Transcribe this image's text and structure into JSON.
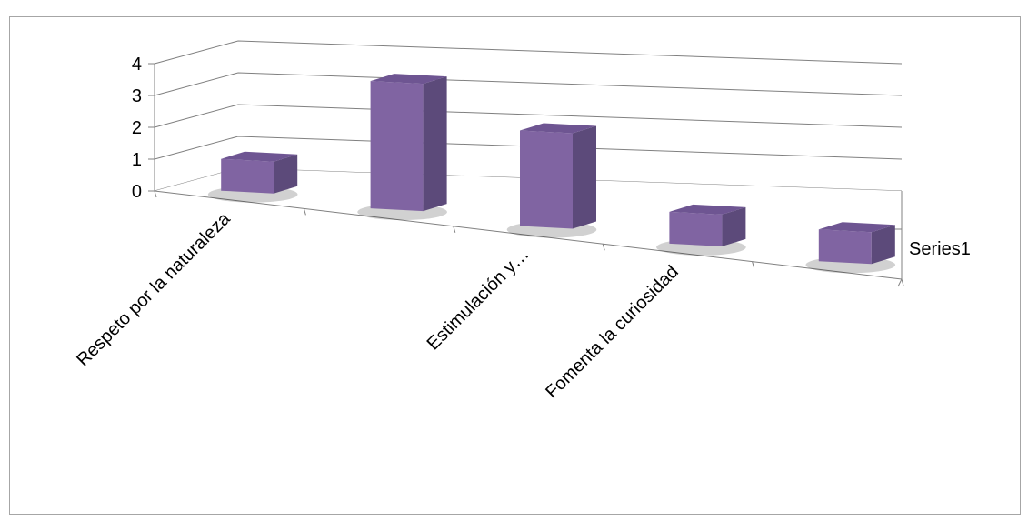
{
  "chart_data": {
    "type": "bar",
    "style": "3d-column",
    "categories": [
      "Respeto por la naturaleza",
      "",
      "Estimulación y…",
      "Fomenta la curiosidad",
      ""
    ],
    "series": [
      {
        "name": "Series1",
        "values": [
          1,
          4,
          3,
          1,
          1
        ]
      }
    ],
    "ylim": [
      0,
      4
    ],
    "yticks": [
      "0",
      "1",
      "2",
      "3",
      "4"
    ],
    "grid": true,
    "legend": "right",
    "bar_color": "#8064a2",
    "bar_side_color": "#5c4a7a",
    "bar_top_color": "#6e5592"
  }
}
